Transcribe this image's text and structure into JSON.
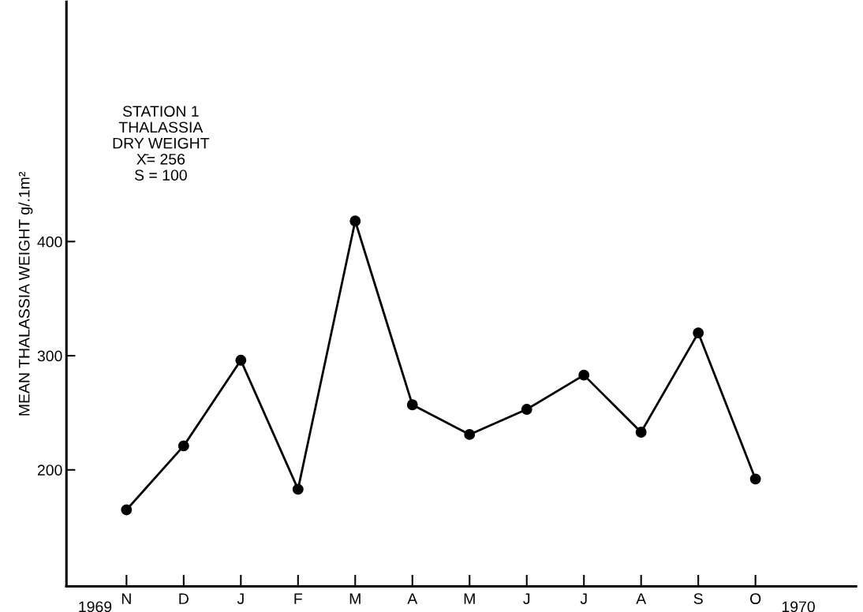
{
  "chart_data": {
    "type": "line",
    "ylabel": "MEAN THALASSIA WEIGHT g/.1m²",
    "categories": [
      "N",
      "D",
      "J",
      "F",
      "M",
      "A",
      "M",
      "J",
      "J",
      "A",
      "S",
      "O"
    ],
    "series": [
      {
        "color": "#000000",
        "values": [
          165,
          221,
          296,
          183,
          418,
          257,
          231,
          253,
          283,
          233,
          320,
          192
        ]
      }
    ],
    "ylim": [
      98,
      610
    ],
    "yticks": [
      200,
      300,
      400
    ],
    "marker": "circle",
    "line_style": "solid",
    "grid": false,
    "legend": false,
    "annotations": [
      "STATION 1\nTHALASSIA\nDRY WEIGHT\nX̄= 256\nS = 100",
      "1969",
      "1970"
    ]
  }
}
